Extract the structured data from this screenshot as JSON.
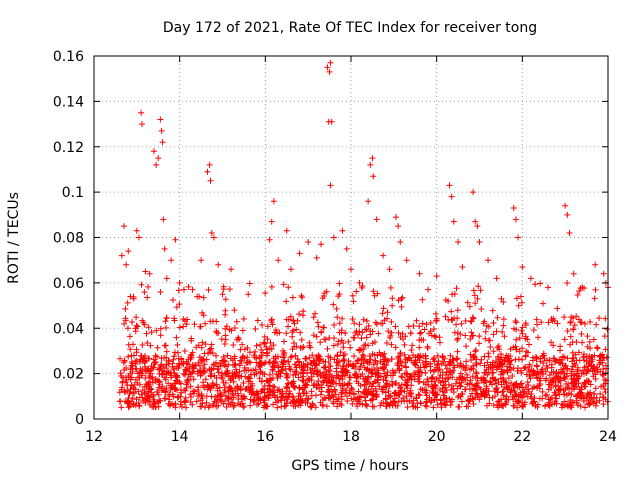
{
  "chart_data": {
    "type": "scatter",
    "title": "Day 172 of 2021, Rate Of TEC Index for receiver tong",
    "xlabel": "GPS time / hours",
    "ylabel": "ROTI / TECUs",
    "xlim": [
      12,
      24
    ],
    "ylim": [
      0,
      0.16
    ],
    "xticks": [
      12,
      14,
      16,
      18,
      20,
      22,
      24
    ],
    "xtick_labels": [
      "12",
      "14",
      "16",
      "18",
      "20",
      "22",
      "24"
    ],
    "yticks": [
      0,
      0.02,
      0.04,
      0.06,
      0.08,
      0.1,
      0.12,
      0.14,
      0.16
    ],
    "ytick_labels": [
      "0",
      "0.02",
      "0.04",
      "0.06",
      "0.08",
      "0.1",
      "0.12",
      "0.14",
      "0.16"
    ],
    "grid": true,
    "marker": "+",
    "color": "#ff0000",
    "x_range_data": [
      12.6,
      24.0
    ],
    "series": [
      {
        "name": "ROTI",
        "points": [
          [
            12.65,
            0.072
          ],
          [
            12.7,
            0.085
          ],
          [
            12.75,
            0.068
          ],
          [
            12.8,
            0.074
          ],
          [
            12.85,
            0.054
          ],
          [
            13.0,
            0.083
          ],
          [
            13.05,
            0.08
          ],
          [
            13.1,
            0.135
          ],
          [
            13.12,
            0.13
          ],
          [
            13.2,
            0.065
          ],
          [
            13.3,
            0.064
          ],
          [
            13.4,
            0.118
          ],
          [
            13.45,
            0.112
          ],
          [
            13.5,
            0.115
          ],
          [
            13.55,
            0.132
          ],
          [
            13.58,
            0.127
          ],
          [
            13.6,
            0.122
          ],
          [
            13.62,
            0.088
          ],
          [
            13.65,
            0.075
          ],
          [
            13.7,
            0.062
          ],
          [
            13.8,
            0.07
          ],
          [
            13.9,
            0.079
          ],
          [
            14.0,
            0.06
          ],
          [
            14.3,
            0.057
          ],
          [
            14.5,
            0.07
          ],
          [
            14.65,
            0.109
          ],
          [
            14.7,
            0.112
          ],
          [
            14.72,
            0.105
          ],
          [
            14.75,
            0.082
          ],
          [
            14.8,
            0.08
          ],
          [
            14.9,
            0.068
          ],
          [
            15.0,
            0.055
          ],
          [
            15.2,
            0.066
          ],
          [
            15.6,
            0.055
          ],
          [
            16.1,
            0.079
          ],
          [
            16.15,
            0.087
          ],
          [
            16.2,
            0.096
          ],
          [
            16.3,
            0.07
          ],
          [
            16.5,
            0.083
          ],
          [
            16.6,
            0.066
          ],
          [
            16.8,
            0.073
          ],
          [
            17.0,
            0.078
          ],
          [
            17.2,
            0.071
          ],
          [
            17.3,
            0.077
          ],
          [
            17.45,
            0.155
          ],
          [
            17.5,
            0.153
          ],
          [
            17.52,
            0.157
          ],
          [
            17.48,
            0.131
          ],
          [
            17.55,
            0.131
          ],
          [
            17.52,
            0.103
          ],
          [
            17.6,
            0.08
          ],
          [
            17.8,
            0.083
          ],
          [
            17.9,
            0.075
          ],
          [
            18.0,
            0.066
          ],
          [
            18.2,
            0.06
          ],
          [
            18.4,
            0.096
          ],
          [
            18.45,
            0.112
          ],
          [
            18.5,
            0.115
          ],
          [
            18.52,
            0.107
          ],
          [
            18.6,
            0.088
          ],
          [
            18.75,
            0.072
          ],
          [
            18.9,
            0.066
          ],
          [
            19.05,
            0.089
          ],
          [
            19.1,
            0.085
          ],
          [
            19.15,
            0.078
          ],
          [
            19.3,
            0.07
          ],
          [
            19.6,
            0.064
          ],
          [
            19.8,
            0.057
          ],
          [
            20.0,
            0.063
          ],
          [
            20.3,
            0.103
          ],
          [
            20.35,
            0.098
          ],
          [
            20.4,
            0.087
          ],
          [
            20.5,
            0.078
          ],
          [
            20.6,
            0.067
          ],
          [
            20.85,
            0.1
          ],
          [
            20.9,
            0.087
          ],
          [
            20.95,
            0.085
          ],
          [
            21.0,
            0.078
          ],
          [
            21.2,
            0.07
          ],
          [
            21.4,
            0.062
          ],
          [
            21.8,
            0.093
          ],
          [
            21.85,
            0.088
          ],
          [
            21.9,
            0.08
          ],
          [
            22.0,
            0.067
          ],
          [
            22.2,
            0.062
          ],
          [
            22.6,
            0.058
          ],
          [
            23.0,
            0.094
          ],
          [
            23.05,
            0.09
          ],
          [
            23.1,
            0.082
          ],
          [
            23.2,
            0.064
          ],
          [
            23.4,
            0.058
          ],
          [
            23.7,
            0.068
          ],
          [
            23.9,
            0.064
          ],
          [
            23.95,
            0.06
          ],
          [
            24.0,
            0.058
          ]
        ],
        "dense_band": {
          "description": "dense cloud of points throughout the time range",
          "x_range": [
            12.6,
            24.0
          ],
          "y_min": 0.005,
          "y_typical_max": 0.045,
          "y_occasional_max": 0.06
        }
      }
    ]
  }
}
